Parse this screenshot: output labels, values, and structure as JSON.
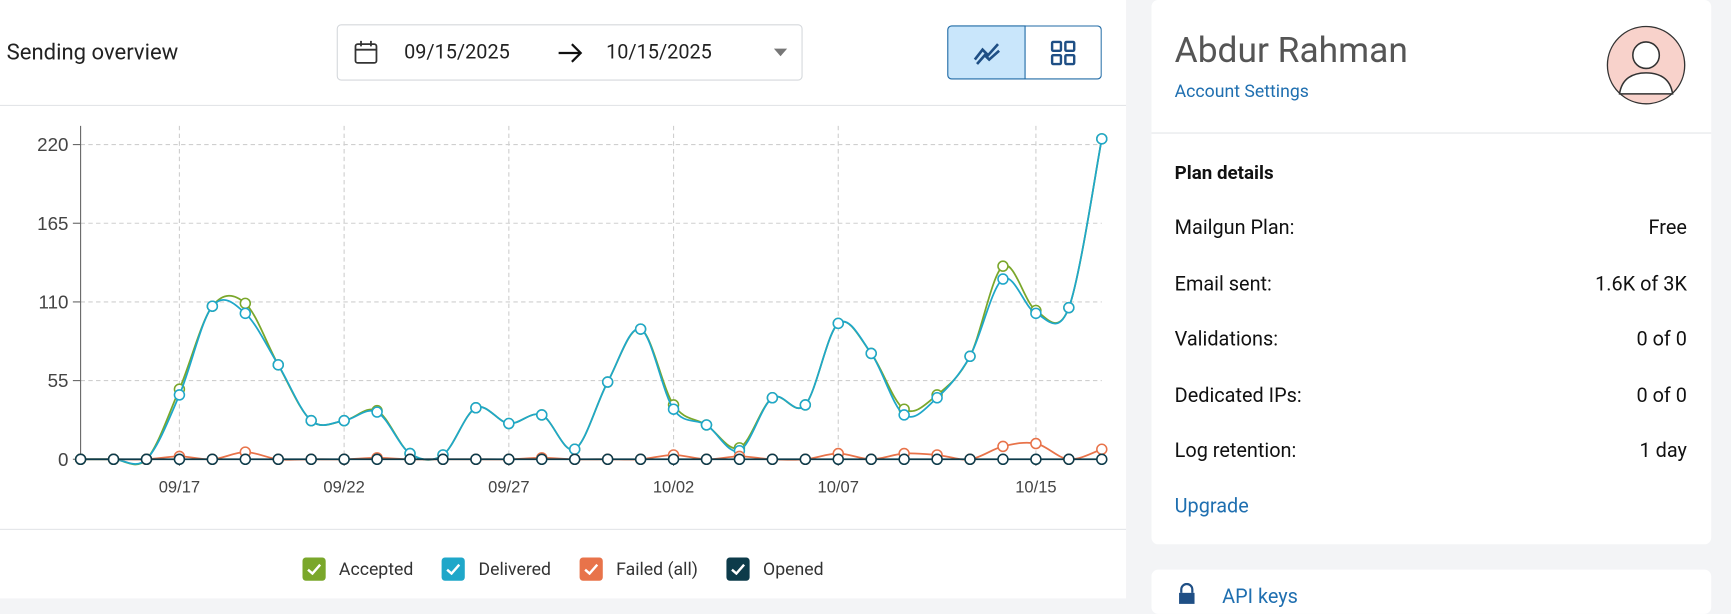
{
  "header": {
    "title": "Sending overview",
    "date_start": "09/15/2025",
    "date_end": "10/15/2025"
  },
  "chart_data": {
    "type": "line",
    "categories": [
      null,
      null,
      null,
      "09/17",
      null,
      null,
      null,
      null,
      "09/22",
      null,
      null,
      null,
      null,
      "09/27",
      null,
      null,
      null,
      null,
      "10/02",
      null,
      null,
      null,
      null,
      "10/07",
      null,
      null,
      null,
      null,
      null,
      "10/15",
      null,
      null
    ],
    "series": [
      {
        "name": "Accepted",
        "color": "#7aa72b",
        "values": [
          0,
          0,
          0,
          49,
          107,
          109,
          66,
          27,
          27,
          34,
          4,
          3,
          36,
          25,
          31,
          7,
          54,
          91,
          38,
          24,
          8,
          43,
          38,
          95,
          74,
          35,
          45,
          72,
          135,
          104,
          106,
          224
        ]
      },
      {
        "name": "Delivered",
        "color": "#1fa7c9",
        "values": [
          0,
          0,
          0,
          45,
          107,
          102,
          66,
          27,
          27,
          33,
          4,
          3,
          36,
          25,
          31,
          7,
          54,
          91,
          35,
          24,
          6,
          43,
          38,
          95,
          74,
          31,
          43,
          72,
          126,
          102,
          106,
          224
        ]
      },
      {
        "name": "Failed (all)",
        "color": "#e8734a",
        "values": [
          0,
          0,
          0,
          2,
          0,
          5,
          0,
          0,
          0,
          1,
          0,
          0,
          0,
          0,
          1,
          0,
          0,
          0,
          3,
          0,
          2,
          0,
          0,
          4,
          0,
          4,
          3,
          0,
          9,
          11,
          0,
          7
        ]
      },
      {
        "name": "Opened",
        "color": "#0d3b4a",
        "values": [
          0,
          0,
          0,
          0,
          0,
          0,
          0,
          0,
          0,
          0,
          0,
          0,
          0,
          0,
          0,
          0,
          0,
          0,
          0,
          0,
          0,
          0,
          0,
          0,
          0,
          0,
          0,
          0,
          0,
          0,
          0,
          0
        ]
      }
    ],
    "ylim": [
      0,
      230
    ],
    "yticks": [
      0,
      55,
      110,
      165,
      220
    ],
    "grid": true
  },
  "profile": {
    "name": "Abdur Rahman",
    "link": "Account Settings"
  },
  "plan": {
    "title": "Plan details",
    "rows": [
      [
        "Mailgun Plan:",
        "Free"
      ],
      [
        "Email sent:",
        "1.6K of 3K"
      ],
      [
        "Validations:",
        "0 of 0"
      ],
      [
        "Dedicated IPs:",
        "0 of 0"
      ],
      [
        "Log retention:",
        "1 day"
      ]
    ],
    "upgrade": "Upgrade"
  },
  "api_keys": "API keys"
}
